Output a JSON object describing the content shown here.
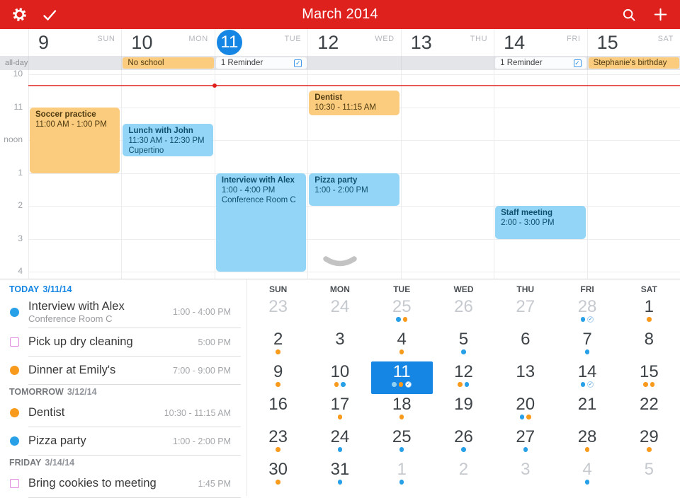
{
  "topbar": {
    "title": "March 2014",
    "icons": [
      "settings-gear",
      "done-check",
      "search-magnifier",
      "add-plus"
    ]
  },
  "colors": {
    "topbar_red": "#df211e",
    "accent_blue": "#1586e3",
    "event_blue": "#92d5f6",
    "event_orange": "#fbcb7e",
    "dot_blue": "#28a0e8",
    "dot_orange": "#f89a1c",
    "reminder_pink": "#e28ae2"
  },
  "week": {
    "allday_label": "all-day",
    "days": [
      {
        "num": "9",
        "dow": "SUN",
        "selected": false
      },
      {
        "num": "10",
        "dow": "MON",
        "selected": false
      },
      {
        "num": "11",
        "dow": "TUE",
        "selected": true
      },
      {
        "num": "12",
        "dow": "WED",
        "selected": false
      },
      {
        "num": "13",
        "dow": "THU",
        "selected": false
      },
      {
        "num": "14",
        "dow": "FRI",
        "selected": false
      },
      {
        "num": "15",
        "dow": "SAT",
        "selected": false
      }
    ],
    "allday_items": [
      {
        "col": 1,
        "label": "No school",
        "kind": "orange"
      },
      {
        "col": 2,
        "label": "1 Reminder",
        "kind": "reminder"
      },
      {
        "col": 5,
        "label": "1 Reminder",
        "kind": "reminder"
      },
      {
        "col": 6,
        "label": "Stephanie's birthday",
        "kind": "orange"
      }
    ],
    "hour_labels": [
      "10",
      "11",
      "noon",
      "1",
      "2",
      "3",
      "4"
    ],
    "now_time": 10.34,
    "events": [
      {
        "col": 0,
        "start": 11,
        "end": 13,
        "kind": "orange",
        "title": "Soccer practice",
        "time": "11:00 AM - 1:00 PM",
        "location": ""
      },
      {
        "col": 1,
        "start": 11.5,
        "end": 12.5,
        "kind": "blue",
        "title": "Lunch with John",
        "time": "11:30 AM - 12:30 PM",
        "location": "Cupertino"
      },
      {
        "col": 2,
        "start": 13,
        "end": 16,
        "kind": "blue",
        "title": "Interview with Alex",
        "time": "1:00 - 4:00 PM",
        "location": "Conference Room C"
      },
      {
        "col": 3,
        "start": 10.5,
        "end": 11.25,
        "kind": "orange",
        "title": "Dentist",
        "time": "10:30 - 11:15 AM",
        "location": ""
      },
      {
        "col": 3,
        "start": 13,
        "end": 14,
        "kind": "blue",
        "title": "Pizza party",
        "time": "1:00 - 2:00 PM",
        "location": ""
      },
      {
        "col": 5,
        "start": 14,
        "end": 15,
        "kind": "blue",
        "title": "Staff meeting",
        "time": "2:00 - 3:00 PM",
        "location": ""
      }
    ]
  },
  "agenda": {
    "sections": [
      {
        "label": "TODAY",
        "date": "3/11/14",
        "accent": true,
        "items": [
          {
            "bullet": "blue-dot",
            "title": "Interview with Alex",
            "subtitle": "Conference Room C",
            "time": "1:00 - 4:00 PM"
          },
          {
            "bullet": "pink-square",
            "title": "Pick up dry cleaning",
            "subtitle": "",
            "time": "5:00 PM"
          },
          {
            "bullet": "orange-dot",
            "title": "Dinner at Emily's",
            "subtitle": "",
            "time": "7:00 - 9:00 PM"
          }
        ]
      },
      {
        "label": "TOMORROW",
        "date": "3/12/14",
        "accent": false,
        "items": [
          {
            "bullet": "orange-dot",
            "title": "Dentist",
            "subtitle": "",
            "time": "10:30 - 11:15 AM"
          },
          {
            "bullet": "blue-dot",
            "title": "Pizza party",
            "subtitle": "",
            "time": "1:00 - 2:00 PM"
          }
        ]
      },
      {
        "label": "FRIDAY",
        "date": "3/14/14",
        "accent": false,
        "items": [
          {
            "bullet": "pink-square",
            "title": "Bring cookies to meeting",
            "subtitle": "",
            "time": "1:45 PM"
          }
        ]
      }
    ]
  },
  "minical": {
    "dow": [
      "SUN",
      "MON",
      "TUE",
      "WED",
      "THU",
      "FRI",
      "SAT"
    ],
    "weeks": [
      [
        {
          "n": "23",
          "other": true,
          "dots": []
        },
        {
          "n": "24",
          "other": true,
          "dots": []
        },
        {
          "n": "25",
          "other": true,
          "dots": [
            "b",
            "o"
          ]
        },
        {
          "n": "26",
          "other": true,
          "dots": []
        },
        {
          "n": "27",
          "other": true,
          "dots": []
        },
        {
          "n": "28",
          "other": true,
          "dots": [
            "b",
            "c"
          ]
        },
        {
          "n": "1",
          "other": false,
          "dots": [
            "o"
          ]
        }
      ],
      [
        {
          "n": "2",
          "other": false,
          "dots": [
            "o"
          ]
        },
        {
          "n": "3",
          "other": false,
          "dots": []
        },
        {
          "n": "4",
          "other": false,
          "dots": [
            "o"
          ]
        },
        {
          "n": "5",
          "other": false,
          "dots": [
            "b"
          ]
        },
        {
          "n": "6",
          "other": false,
          "dots": []
        },
        {
          "n": "7",
          "other": false,
          "dots": [
            "b"
          ]
        },
        {
          "n": "8",
          "other": false,
          "dots": []
        }
      ],
      [
        {
          "n": "9",
          "other": false,
          "dots": [
            "o"
          ]
        },
        {
          "n": "10",
          "other": false,
          "dots": [
            "o",
            "b"
          ]
        },
        {
          "n": "11",
          "other": false,
          "sel": true,
          "dots": [
            "w",
            "o",
            "c"
          ]
        },
        {
          "n": "12",
          "other": false,
          "dots": [
            "o",
            "b"
          ]
        },
        {
          "n": "13",
          "other": false,
          "dots": []
        },
        {
          "n": "14",
          "other": false,
          "dots": [
            "b",
            "c"
          ]
        },
        {
          "n": "15",
          "other": false,
          "dots": [
            "o",
            "o"
          ]
        }
      ],
      [
        {
          "n": "16",
          "other": false,
          "dots": []
        },
        {
          "n": "17",
          "other": false,
          "dots": [
            "o"
          ]
        },
        {
          "n": "18",
          "other": false,
          "dots": [
            "o"
          ]
        },
        {
          "n": "19",
          "other": false,
          "dots": []
        },
        {
          "n": "20",
          "other": false,
          "dots": [
            "b",
            "o"
          ]
        },
        {
          "n": "21",
          "other": false,
          "dots": []
        },
        {
          "n": "22",
          "other": false,
          "dots": []
        }
      ],
      [
        {
          "n": "23",
          "other": false,
          "dots": [
            "o"
          ]
        },
        {
          "n": "24",
          "other": false,
          "dots": [
            "b"
          ]
        },
        {
          "n": "25",
          "other": false,
          "dots": [
            "b"
          ]
        },
        {
          "n": "26",
          "other": false,
          "dots": [
            "b"
          ]
        },
        {
          "n": "27",
          "other": false,
          "dots": [
            "b"
          ]
        },
        {
          "n": "28",
          "other": false,
          "dots": [
            "o"
          ]
        },
        {
          "n": "29",
          "other": false,
          "dots": [
            "o"
          ]
        }
      ],
      [
        {
          "n": "30",
          "other": false,
          "dots": [
            "o"
          ]
        },
        {
          "n": "31",
          "other": false,
          "dots": [
            "b"
          ]
        },
        {
          "n": "1",
          "other": true,
          "dots": [
            "b"
          ]
        },
        {
          "n": "2",
          "other": true,
          "dots": []
        },
        {
          "n": "3",
          "other": true,
          "dots": []
        },
        {
          "n": "4",
          "other": true,
          "dots": [
            "b"
          ]
        },
        {
          "n": "5",
          "other": true,
          "dots": []
        }
      ]
    ]
  }
}
